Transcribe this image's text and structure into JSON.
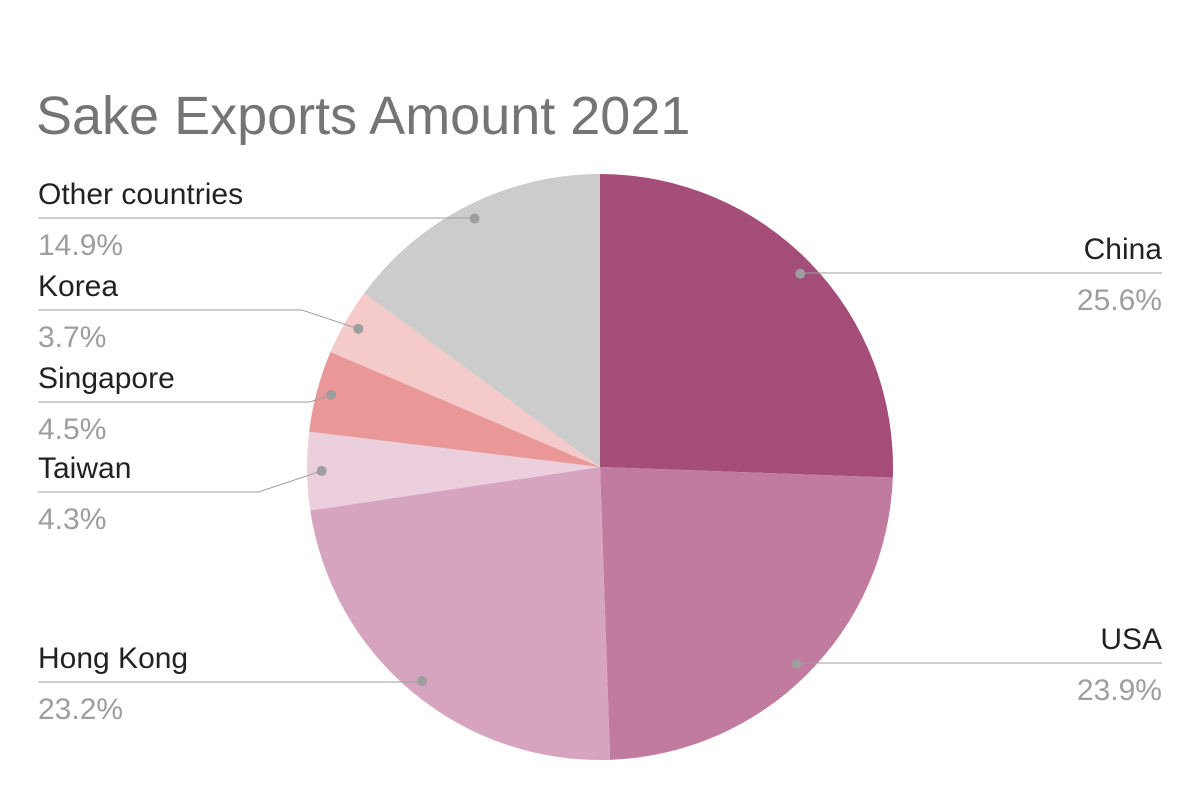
{
  "chart_data": {
    "type": "pie",
    "title": "Sake Exports Amount 2021",
    "categories": [
      "China",
      "USA",
      "Hong Kong",
      "Taiwan",
      "Singapore",
      "Korea",
      "Other countries"
    ],
    "values": [
      25.6,
      23.9,
      23.2,
      4.3,
      4.5,
      3.7,
      14.9
    ],
    "value_labels": [
      "25.6%",
      "23.9%",
      "23.2%",
      "4.3%",
      "4.5%",
      "3.7%",
      "14.9%"
    ],
    "colors": [
      "#a54d79",
      "#c17b9f",
      "#d6a4bf",
      "#ebcfdc",
      "#e99797",
      "#f4caca",
      "#cccccc"
    ]
  }
}
